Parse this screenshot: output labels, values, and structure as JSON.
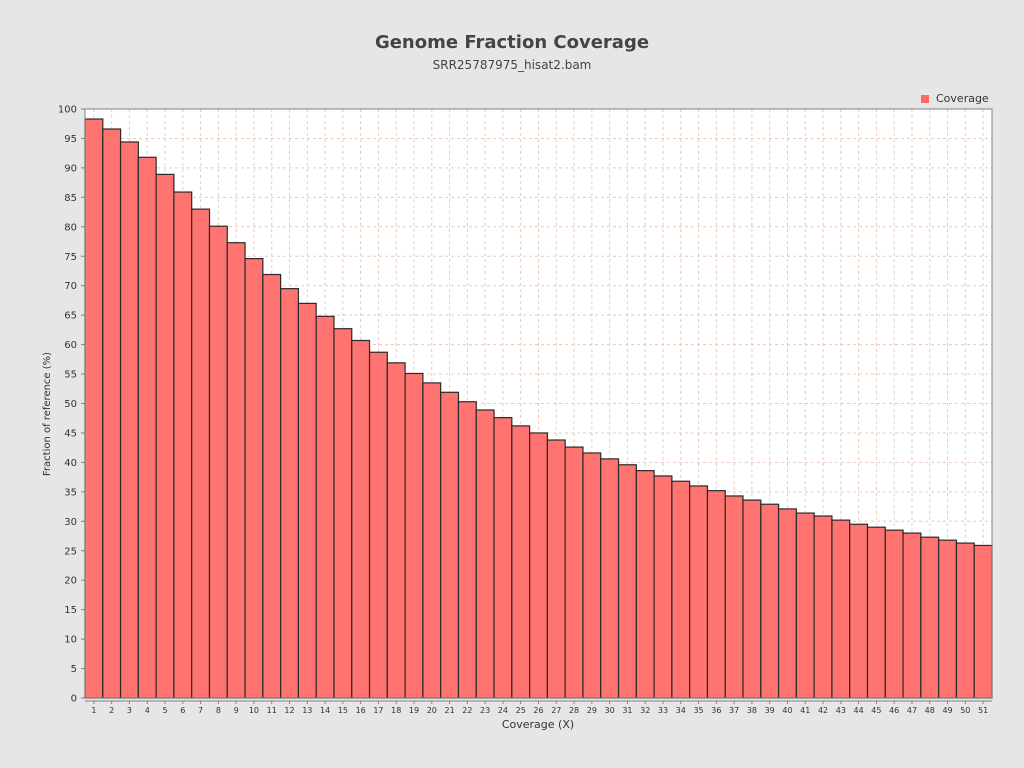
{
  "colors": {
    "background": "#e6e6e6",
    "plot_background": "#ffffff",
    "bar_fill": "#ff7470",
    "bar_stroke": "#2a2a2a",
    "grid": "#f0c8b0",
    "legend_swatch": "#ff6a66"
  },
  "chart_data": {
    "type": "bar",
    "title": "Genome Fraction Coverage",
    "subtitle": "SRR25787975_hisat2.bam",
    "xlabel": "Coverage (X)",
    "ylabel": "Fraction of reference (%)",
    "ylim": [
      0,
      100
    ],
    "yticks": [
      0,
      5,
      10,
      15,
      20,
      25,
      30,
      35,
      40,
      45,
      50,
      55,
      60,
      65,
      70,
      75,
      80,
      85,
      90,
      95,
      100
    ],
    "grid": true,
    "legend": {
      "position": "top-right",
      "entries": [
        "Coverage"
      ]
    },
    "categories": [
      "1",
      "2",
      "3",
      "4",
      "5",
      "6",
      "7",
      "8",
      "9",
      "10",
      "11",
      "12",
      "13",
      "14",
      "15",
      "16",
      "17",
      "18",
      "19",
      "20",
      "21",
      "22",
      "23",
      "24",
      "25",
      "26",
      "27",
      "28",
      "29",
      "30",
      "31",
      "32",
      "33",
      "34",
      "35",
      "36",
      "37",
      "38",
      "39",
      "40",
      "41",
      "42",
      "43",
      "44",
      "45",
      "46",
      "47",
      "48",
      "49",
      "50",
      "51"
    ],
    "series": [
      {
        "name": "Coverage",
        "values": [
          98.3,
          96.6,
          94.4,
          91.8,
          88.9,
          85.9,
          83.0,
          80.1,
          77.3,
          74.6,
          71.9,
          69.5,
          67.0,
          64.8,
          62.7,
          60.7,
          58.7,
          56.9,
          55.1,
          53.5,
          51.9,
          50.3,
          48.9,
          47.6,
          46.2,
          45.0,
          43.8,
          42.6,
          41.6,
          40.6,
          39.6,
          38.6,
          37.7,
          36.8,
          36.0,
          35.2,
          34.3,
          33.6,
          32.9,
          32.1,
          31.4,
          30.9,
          30.2,
          29.5,
          29.0,
          28.5,
          28.0,
          27.3,
          26.8,
          26.3,
          25.9
        ]
      }
    ]
  }
}
